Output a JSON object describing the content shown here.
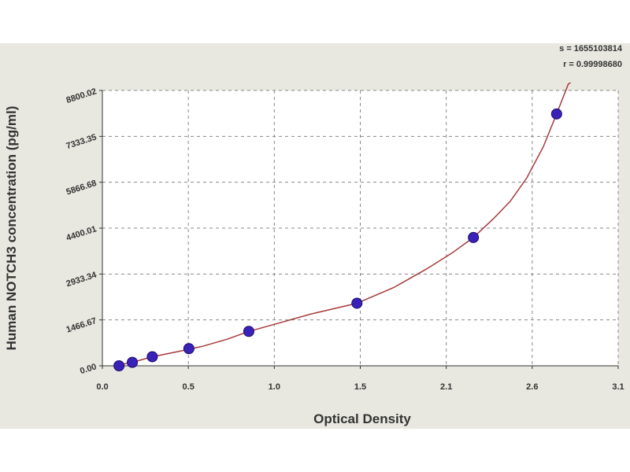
{
  "chart_data": {
    "type": "scatter",
    "title": "",
    "xlabel": "Optical Density",
    "ylabel": "Human NOTCH3 concentration (pg/ml)",
    "xlim": [
      0.0,
      3.1
    ],
    "ylim": [
      0.0,
      8800.02
    ],
    "x_ticks": [
      "0.0",
      "0.5",
      "1.0",
      "1.5",
      "2.1",
      "2.6",
      "3.1"
    ],
    "y_ticks": [
      "0.00",
      "1466.67",
      "2933.34",
      "4400.01",
      "5866.68",
      "7333.35",
      "8800.02"
    ],
    "grid": true,
    "legend": "none",
    "stats": {
      "s_label": "s = 1655103814",
      "r_label": "r = 0.99998680"
    },
    "colors": {
      "point_fill": "#3a22b8",
      "point_edge": "#1a0a70",
      "curve": "#a63a3a",
      "grid": "#888888",
      "plot_background": "#ffffff",
      "frame_background": "#e8e8e0"
    },
    "series": [
      {
        "type": "scatter",
        "x": [
          0.1,
          0.18,
          0.3,
          0.52,
          0.88,
          1.53,
          2.23,
          2.73
        ],
        "y": [
          0,
          110,
          290,
          550,
          1100,
          2000,
          4100,
          8050
        ]
      }
    ],
    "fit_curve": {
      "x": [
        0.07,
        0.18,
        0.3,
        0.45,
        0.6,
        0.75,
        0.88,
        1.05,
        1.25,
        1.53,
        1.75,
        1.95,
        2.1,
        2.23,
        2.35,
        2.45,
        2.55,
        2.65,
        2.73,
        2.8,
        2.86
      ],
      "y": [
        0,
        110,
        290,
        450,
        620,
        850,
        1100,
        1350,
        1650,
        2000,
        2500,
        3100,
        3600,
        4100,
        4700,
        5250,
        6000,
        7000,
        8050,
        9000,
        9500
      ]
    }
  }
}
